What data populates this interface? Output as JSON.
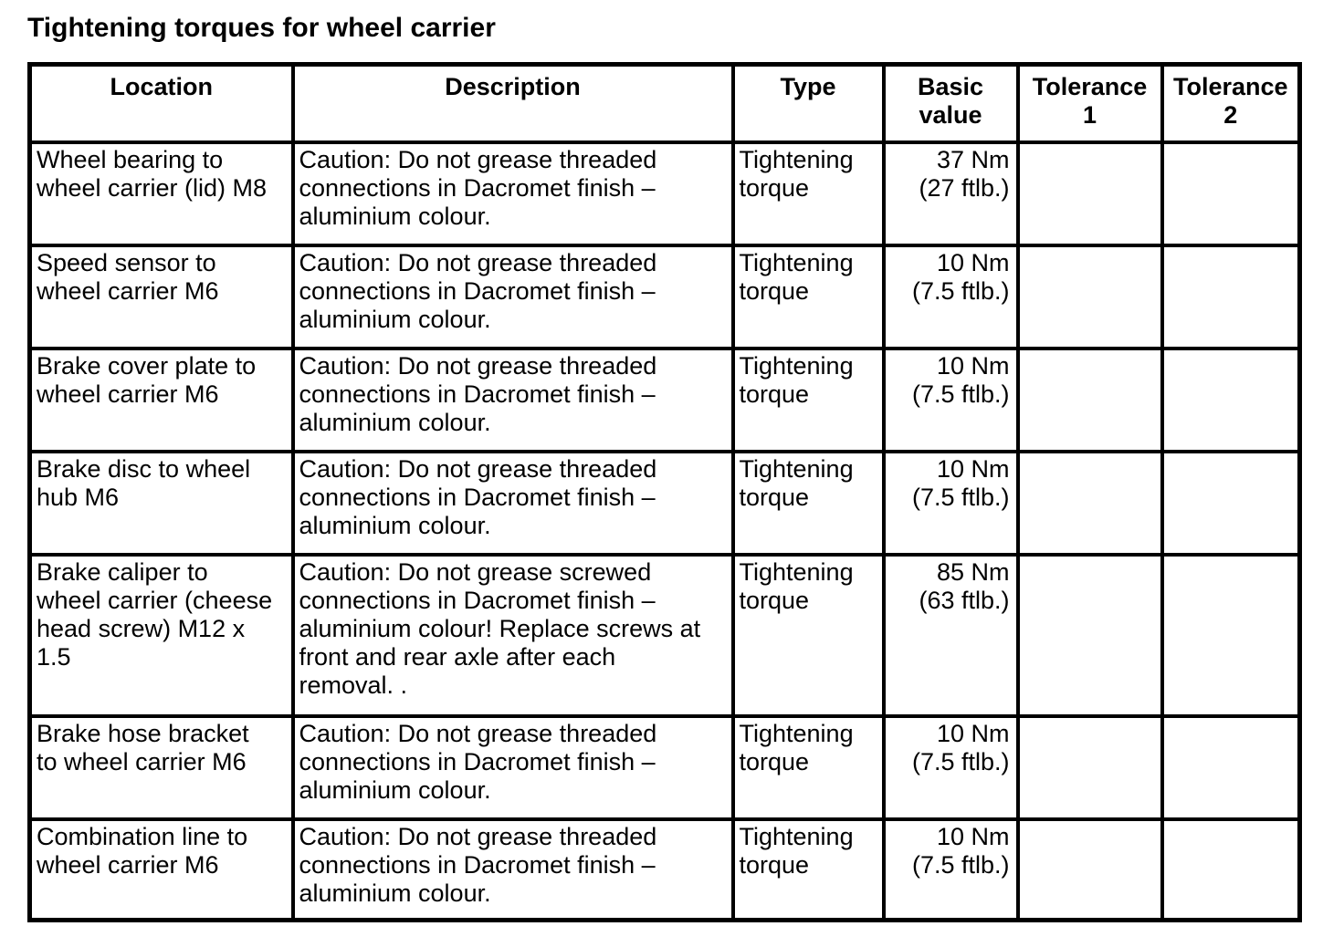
{
  "page": {
    "title": "Tightening torques for wheel carrier"
  },
  "table": {
    "headers": {
      "location": "Location",
      "description": "Description",
      "type": "Type",
      "basic_value": "Basic\nvalue",
      "tolerance_1": "Tolerance\n1",
      "tolerance_2": "Tolerance\n2"
    },
    "rows": [
      {
        "location": "Wheel bearing to\nwheel carrier (lid) M8",
        "description": "Caution: Do not grease threaded\nconnections in Dacromet finish –\naluminium colour.",
        "type": "Tightening\ntorque",
        "basic_value": "37 Nm\n(27 ftlb.)",
        "tolerance_1": "",
        "tolerance_2": ""
      },
      {
        "location": "Speed sensor to\nwheel carrier M6",
        "description": "Caution: Do not grease threaded\nconnections in Dacromet finish –\naluminium colour.",
        "type": "Tightening\ntorque",
        "basic_value": "10 Nm\n(7.5 ftlb.)",
        "tolerance_1": "",
        "tolerance_2": ""
      },
      {
        "location": "Brake cover plate to\nwheel carrier M6",
        "description": "Caution: Do not grease threaded\nconnections in Dacromet finish –\naluminium colour.",
        "type": "Tightening\ntorque",
        "basic_value": "10 Nm\n(7.5 ftlb.)",
        "tolerance_1": "",
        "tolerance_2": ""
      },
      {
        "location": "Brake disc to wheel\nhub M6",
        "description": "Caution: Do not grease threaded\nconnections in Dacromet finish –\naluminium colour.",
        "type": "Tightening\ntorque",
        "basic_value": "10 Nm\n(7.5 ftlb.)",
        "tolerance_1": "",
        "tolerance_2": ""
      },
      {
        "location": "Brake caliper to\nwheel carrier (cheese\nhead screw) M12 x\n1.5",
        "description": "Caution: Do not grease screwed\nconnections in Dacromet finish –\naluminium colour! Replace screws at\nfront and rear axle after each\nremoval. .",
        "type": "Tightening\ntorque",
        "basic_value": "85 Nm\n(63 ftlb.)",
        "tolerance_1": "",
        "tolerance_2": ""
      },
      {
        "location": "Brake hose bracket\nto wheel carrier M6",
        "description": "Caution: Do not grease threaded\nconnections in Dacromet finish –\naluminium colour.",
        "type": "Tightening\ntorque",
        "basic_value": "10 Nm\n(7.5 ftlb.)",
        "tolerance_1": "",
        "tolerance_2": ""
      },
      {
        "location": "Combination line to\nwheel carrier M6",
        "description": "Caution: Do not grease threaded\nconnections in Dacromet finish –\naluminium colour.",
        "type": "Tightening\ntorque",
        "basic_value": "10 Nm\n(7.5 ftlb.)",
        "tolerance_1": "",
        "tolerance_2": ""
      }
    ]
  }
}
